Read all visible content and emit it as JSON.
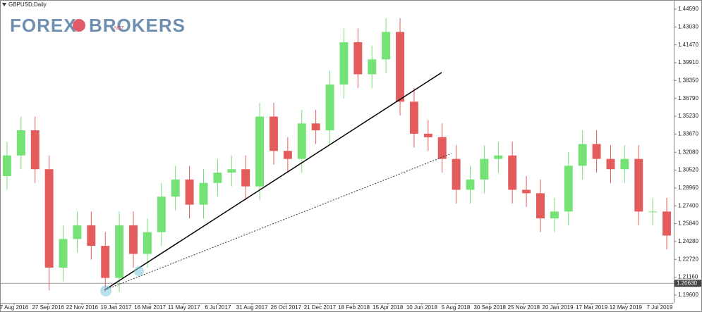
{
  "logo": {
    "left": "FOREX",
    "right": "BROKERS",
    "badge": ".NET"
  },
  "chart_data": {
    "type": "candlestick",
    "title": "GBPUSD,Daily",
    "x_tick_labels": [
      "7 Aug 2016",
      "27 Sep 2016",
      "22 Nov 2016",
      "19 Jan 2017",
      "16 Mar 2017",
      "11 May 2017",
      "6 Jul 2017",
      "31 Aug 2017",
      "26 Oct 2017",
      "21 Dec 2017",
      "18 Feb 2018",
      "15 Apr 2018",
      "10 Jun 2018",
      "5 Aug 2018",
      "30 Sep 2018",
      "25 Nov 2018",
      "20 Jan 2019",
      "17 Mar 2019",
      "12 May 2019",
      "7 Jul 2019"
    ],
    "open": [
      1.3,
      1.318,
      1.34,
      1.306,
      1.22,
      1.245,
      1.257,
      1.239,
      1.211,
      1.257,
      1.232,
      1.251,
      1.282,
      1.297,
      1.275,
      1.294,
      1.303,
      1.306,
      1.291,
      1.352,
      1.322,
      1.315,
      1.346,
      1.34,
      1.38,
      1.417,
      1.389,
      1.402,
      1.426,
      1.365,
      1.337,
      1.334,
      1.315,
      1.288,
      1.297,
      1.315,
      1.318,
      1.288,
      1.285,
      1.263,
      1.269,
      1.309,
      1.328,
      1.315,
      1.306,
      1.315,
      1.269,
      1.269
    ],
    "high": [
      1.33,
      1.352,
      1.352,
      1.318,
      1.257,
      1.269,
      1.269,
      1.251,
      1.269,
      1.269,
      1.263,
      1.294,
      1.309,
      1.309,
      1.306,
      1.315,
      1.318,
      1.318,
      1.364,
      1.364,
      1.334,
      1.358,
      1.358,
      1.392,
      1.429,
      1.429,
      1.414,
      1.438,
      1.438,
      1.377,
      1.349,
      1.346,
      1.327,
      1.309,
      1.327,
      1.33,
      1.33,
      1.3,
      1.297,
      1.281,
      1.321,
      1.34,
      1.34,
      1.327,
      1.327,
      1.327,
      1.281,
      1.281
    ],
    "low": [
      1.288,
      1.306,
      1.294,
      1.2,
      1.208,
      1.233,
      1.227,
      1.199,
      1.199,
      1.22,
      1.22,
      1.239,
      1.27,
      1.263,
      1.263,
      1.282,
      1.291,
      1.279,
      1.279,
      1.31,
      1.303,
      1.303,
      1.328,
      1.328,
      1.368,
      1.377,
      1.377,
      1.39,
      1.353,
      1.325,
      1.322,
      1.303,
      1.276,
      1.276,
      1.285,
      1.303,
      1.276,
      1.273,
      1.251,
      1.251,
      1.257,
      1.297,
      1.303,
      1.294,
      1.294,
      1.257,
      1.257,
      1.236
    ],
    "close": [
      1.318,
      1.34,
      1.306,
      1.22,
      1.245,
      1.257,
      1.239,
      1.211,
      1.257,
      1.232,
      1.251,
      1.282,
      1.297,
      1.275,
      1.294,
      1.303,
      1.306,
      1.291,
      1.352,
      1.322,
      1.315,
      1.346,
      1.34,
      1.38,
      1.417,
      1.389,
      1.402,
      1.426,
      1.365,
      1.337,
      1.334,
      1.315,
      1.288,
      1.297,
      1.315,
      1.318,
      1.288,
      1.285,
      1.263,
      1.269,
      1.309,
      1.328,
      1.315,
      1.306,
      1.315,
      1.269,
      1.269,
      1.248
    ],
    "up_color": "#74e274",
    "down_color": "#e35b5b",
    "ylim": [
      1.1892,
      1.4539
    ],
    "yticks": [
      {
        "value": 1.4459,
        "label": "1.44590"
      },
      {
        "value": 1.4303,
        "label": "1.43030"
      },
      {
        "value": 1.4147,
        "label": "1.41470"
      },
      {
        "value": 1.3991,
        "label": "1.39910"
      },
      {
        "value": 1.3835,
        "label": "1.38350"
      },
      {
        "value": 1.3679,
        "label": "1.36790"
      },
      {
        "value": 1.3523,
        "label": "1.35230"
      },
      {
        "value": 1.3367,
        "label": "1.33670"
      },
      {
        "value": 1.3208,
        "label": "1.32080"
      },
      {
        "value": 1.3052,
        "label": "1.30520"
      },
      {
        "value": 1.2896,
        "label": "1.28960"
      },
      {
        "value": 1.274,
        "label": "1.27400"
      },
      {
        "value": 1.2584,
        "label": "1.25840"
      },
      {
        "value": 1.2428,
        "label": "1.24280"
      },
      {
        "value": 1.2272,
        "label": "1.22720"
      },
      {
        "value": 1.2116,
        "label": "1.21160"
      },
      {
        "value": 1.196,
        "label": "1.19600"
      }
    ],
    "bid": {
      "value": 1.2063,
      "label": "1.20630"
    }
  }
}
